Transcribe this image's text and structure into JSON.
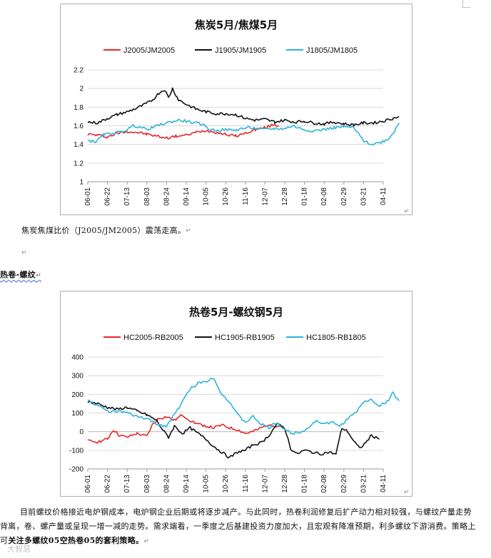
{
  "caption1": "焦炭焦煤比价（J2005/JM2005）震荡走高。",
  "heading": "热卷-螺纹",
  "body": {
    "part1": "目前螺纹价格接近电炉钢成本，电炉钢企业后期或将逐步减产。与此同时，热卷利润修复后扩产动力相对较强，与螺纹产量走势背离，卷、螺产量或呈现一增一减的走势。需求端看，一季度之后基建投资力度加大，且宏观有降准预期，利多螺纹下游消费。策略上可",
    "part2": "关注多螺纹05空热卷05的套利策略。"
  },
  "marks": {
    "return_mark": "↵"
  },
  "watermark": "大智慧",
  "chart_data": [
    {
      "type": "line",
      "title": "焦炭5月/焦煤5月",
      "categories": [
        "06-01",
        "06-22",
        "07-13",
        "08-03",
        "08-24",
        "09-14",
        "10-05",
        "10-26",
        "11-16",
        "12-07",
        "12-28",
        "01-18",
        "02-08",
        "02-29",
        "03-21",
        "04-11"
      ],
      "yticks": [
        "1",
        "1.2",
        "1.4",
        "1.6",
        "1.8",
        "2",
        "2.2"
      ],
      "ylim": [
        1,
        2.2
      ],
      "legend_position": "top",
      "series": [
        {
          "name": "J2005/JM2005",
          "color": "#e8262a",
          "start": 0,
          "end": 9.7,
          "points": [
            [
              0,
              1.51
            ],
            [
              0.5,
              1.5
            ],
            [
              1,
              1.48
            ],
            [
              1.5,
              1.52
            ],
            [
              2,
              1.54
            ],
            [
              2.5,
              1.53
            ],
            [
              3,
              1.51
            ],
            [
              3.5,
              1.49
            ],
            [
              4,
              1.47
            ],
            [
              4.5,
              1.49
            ],
            [
              5,
              1.5
            ],
            [
              5.5,
              1.53
            ],
            [
              6,
              1.55
            ],
            [
              6.5,
              1.53
            ],
            [
              7,
              1.51
            ],
            [
              7.5,
              1.49
            ],
            [
              8,
              1.52
            ],
            [
              8.5,
              1.56
            ],
            [
              9,
              1.58
            ],
            [
              9.4,
              1.61
            ],
            [
              9.7,
              1.6
            ]
          ]
        },
        {
          "name": "J1905/JM1905",
          "color": "#111111",
          "start": 0,
          "end": 15.8,
          "points": [
            [
              0,
              1.64
            ],
            [
              0.5,
              1.63
            ],
            [
              1,
              1.68
            ],
            [
              1.5,
              1.72
            ],
            [
              2,
              1.75
            ],
            [
              2.5,
              1.79
            ],
            [
              3,
              1.84
            ],
            [
              3.3,
              1.88
            ],
            [
              3.6,
              1.95
            ],
            [
              3.9,
              1.99
            ],
            [
              4.1,
              1.9
            ],
            [
              4.3,
              2.0
            ],
            [
              4.6,
              1.88
            ],
            [
              5,
              1.83
            ],
            [
              5.5,
              1.78
            ],
            [
              6,
              1.75
            ],
            [
              6.5,
              1.73
            ],
            [
              7,
              1.73
            ],
            [
              7.5,
              1.72
            ],
            [
              8,
              1.68
            ],
            [
              8.5,
              1.66
            ],
            [
              9,
              1.67
            ],
            [
              9.5,
              1.64
            ],
            [
              10,
              1.66
            ],
            [
              10.5,
              1.64
            ],
            [
              11,
              1.65
            ],
            [
              11.5,
              1.63
            ],
            [
              12,
              1.62
            ],
            [
              12.5,
              1.64
            ],
            [
              13,
              1.62
            ],
            [
              13.5,
              1.61
            ],
            [
              14,
              1.63
            ],
            [
              14.5,
              1.63
            ],
            [
              15,
              1.65
            ],
            [
              15.5,
              1.68
            ],
            [
              15.8,
              1.7
            ]
          ]
        },
        {
          "name": "J1805/JM1805",
          "color": "#2db3d9",
          "start": 0,
          "end": 15.8,
          "points": [
            [
              0,
              1.44
            ],
            [
              0.4,
              1.43
            ],
            [
              0.8,
              1.5
            ],
            [
              1.2,
              1.52
            ],
            [
              1.6,
              1.53
            ],
            [
              2,
              1.56
            ],
            [
              2.3,
              1.6
            ],
            [
              2.6,
              1.59
            ],
            [
              3,
              1.56
            ],
            [
              3.4,
              1.59
            ],
            [
              3.8,
              1.62
            ],
            [
              4.2,
              1.64
            ],
            [
              4.6,
              1.66
            ],
            [
              5,
              1.65
            ],
            [
              5.4,
              1.63
            ],
            [
              5.8,
              1.62
            ],
            [
              6.2,
              1.56
            ],
            [
              6.6,
              1.55
            ],
            [
              7,
              1.56
            ],
            [
              7.4,
              1.55
            ],
            [
              7.8,
              1.57
            ],
            [
              8.2,
              1.58
            ],
            [
              8.6,
              1.57
            ],
            [
              9,
              1.56
            ],
            [
              9.5,
              1.57
            ],
            [
              10,
              1.57
            ],
            [
              10.4,
              1.6
            ],
            [
              10.8,
              1.57
            ],
            [
              11.2,
              1.55
            ],
            [
              11.6,
              1.55
            ],
            [
              12,
              1.56
            ],
            [
              12.5,
              1.58
            ],
            [
              13,
              1.59
            ],
            [
              13.5,
              1.58
            ],
            [
              14,
              1.44
            ],
            [
              14.4,
              1.4
            ],
            [
              14.8,
              1.42
            ],
            [
              15.2,
              1.45
            ],
            [
              15.5,
              1.52
            ],
            [
              15.8,
              1.63
            ]
          ]
        }
      ]
    },
    {
      "type": "line",
      "title": "热卷5月-螺纹钢5月",
      "categories": [
        "06-01",
        "06-22",
        "07-13",
        "08-03",
        "08-24",
        "09-14",
        "10-05",
        "10-26",
        "11-16",
        "12-07",
        "12-28",
        "01-18",
        "02-08",
        "02-29",
        "03-21",
        "04-11"
      ],
      "yticks": [
        "-200",
        "-100",
        "0",
        "100",
        "200",
        "300",
        "400"
      ],
      "ylim": [
        -200,
        400
      ],
      "legend_position": "top",
      "series": [
        {
          "name": "HC2005-RB2005",
          "color": "#e8262a",
          "start": 0,
          "end": 9.9,
          "points": [
            [
              0,
              -50
            ],
            [
              0.5,
              -55
            ],
            [
              1,
              -40
            ],
            [
              1.3,
              10
            ],
            [
              1.6,
              -20
            ],
            [
              2,
              -30
            ],
            [
              2.5,
              -10
            ],
            [
              3,
              -25
            ],
            [
              3.3,
              40
            ],
            [
              3.6,
              70
            ],
            [
              4,
              80
            ],
            [
              4.4,
              60
            ],
            [
              4.8,
              90
            ],
            [
              5.2,
              60
            ],
            [
              5.6,
              40
            ],
            [
              6,
              30
            ],
            [
              6.4,
              20
            ],
            [
              6.8,
              35
            ],
            [
              7.2,
              20
            ],
            [
              7.6,
              10
            ],
            [
              8,
              -10
            ],
            [
              8.4,
              0
            ],
            [
              8.8,
              20
            ],
            [
              9.2,
              40
            ],
            [
              9.6,
              30
            ],
            [
              9.9,
              30
            ]
          ]
        },
        {
          "name": "HC1905-RB1905",
          "color": "#111111",
          "start": 0,
          "end": 14.8,
          "points": [
            [
              0,
              160
            ],
            [
              0.5,
              150
            ],
            [
              1,
              130
            ],
            [
              1.5,
              120
            ],
            [
              2,
              130
            ],
            [
              2.5,
              110
            ],
            [
              3,
              90
            ],
            [
              3.5,
              60
            ],
            [
              3.8,
              10
            ],
            [
              4.1,
              -30
            ],
            [
              4.4,
              30
            ],
            [
              4.8,
              -10
            ],
            [
              5.2,
              20
            ],
            [
              5.6,
              -10
            ],
            [
              6,
              -40
            ],
            [
              6.4,
              -80
            ],
            [
              6.8,
              -110
            ],
            [
              7.2,
              -140
            ],
            [
              7.6,
              -110
            ],
            [
              8,
              -100
            ],
            [
              8.4,
              -70
            ],
            [
              8.8,
              -60
            ],
            [
              9.2,
              -20
            ],
            [
              9.6,
              40
            ],
            [
              10,
              20
            ],
            [
              10.3,
              -90
            ],
            [
              10.6,
              -120
            ],
            [
              11,
              -100
            ],
            [
              11.4,
              -110
            ],
            [
              11.8,
              -120
            ],
            [
              12.2,
              -110
            ],
            [
              12.6,
              -120
            ],
            [
              12.9,
              20
            ],
            [
              13.2,
              0
            ],
            [
              13.5,
              -50
            ],
            [
              13.8,
              -90
            ],
            [
              14.1,
              -60
            ],
            [
              14.4,
              -20
            ],
            [
              14.8,
              -40
            ]
          ]
        },
        {
          "name": "HC1805-RB1805",
          "color": "#2db3d9",
          "start": 0,
          "end": 15.8,
          "points": [
            [
              0,
              170
            ],
            [
              0.5,
              140
            ],
            [
              1,
              110
            ],
            [
              1.5,
              110
            ],
            [
              2,
              100
            ],
            [
              2.5,
              80
            ],
            [
              3,
              70
            ],
            [
              3.5,
              40
            ],
            [
              4,
              30
            ],
            [
              4.4,
              90
            ],
            [
              4.8,
              160
            ],
            [
              5.2,
              230
            ],
            [
              5.6,
              260
            ],
            [
              6,
              270
            ],
            [
              6.4,
              290
            ],
            [
              6.8,
              200
            ],
            [
              7.2,
              160
            ],
            [
              7.6,
              90
            ],
            [
              8,
              50
            ],
            [
              8.4,
              80
            ],
            [
              8.8,
              40
            ],
            [
              9.2,
              20
            ],
            [
              9.6,
              50
            ],
            [
              10,
              10
            ],
            [
              10.4,
              -10
            ],
            [
              10.8,
              0
            ],
            [
              11.2,
              20
            ],
            [
              11.6,
              60
            ],
            [
              12,
              40
            ],
            [
              12.4,
              50
            ],
            [
              12.8,
              30
            ],
            [
              13.2,
              70
            ],
            [
              13.6,
              100
            ],
            [
              14,
              160
            ],
            [
              14.4,
              170
            ],
            [
              14.8,
              140
            ],
            [
              15.2,
              160
            ],
            [
              15.5,
              210
            ],
            [
              15.8,
              165
            ]
          ]
        }
      ]
    }
  ]
}
